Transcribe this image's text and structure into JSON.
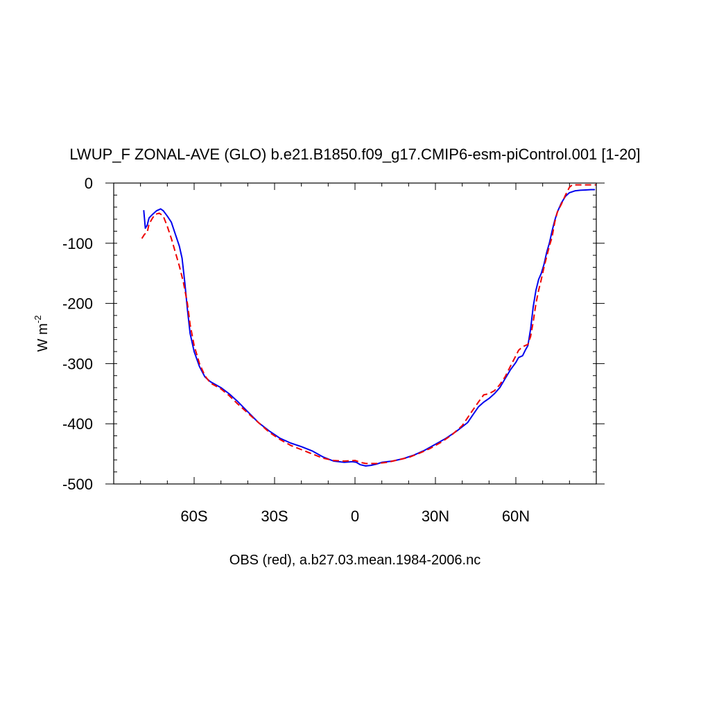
{
  "chart_data": {
    "type": "line",
    "title": "LWUP_F ZONAL-AVE (GLO) b.e21.B1850.f09_g17.CMIP6-esm-piControl.001 [1-20]",
    "ylabel": "W m",
    "ylabel_superscript": "-2",
    "footer": "OBS (red), a.b27.03.mean.1984-2006.nc",
    "xlim": [
      -90,
      90
    ],
    "ylim": [
      -500,
      0
    ],
    "xticks": [
      {
        "value": -60,
        "label": "60S"
      },
      {
        "value": -30,
        "label": "30S"
      },
      {
        "value": 0,
        "label": "0"
      },
      {
        "value": 30,
        "label": "30N"
      },
      {
        "value": 60,
        "label": "60N"
      }
    ],
    "yticks": [
      {
        "value": 0,
        "label": "0"
      },
      {
        "value": -100,
        "label": "-100"
      },
      {
        "value": -200,
        "label": "-200"
      },
      {
        "value": -300,
        "label": "-300"
      },
      {
        "value": -400,
        "label": "-400"
      },
      {
        "value": -500,
        "label": "-500"
      }
    ],
    "grid": false,
    "series": [
      {
        "color": "#0000ee",
        "dash": "solid",
        "points": [
          [
            -78.8,
            -45
          ],
          [
            -78.2,
            -75
          ],
          [
            -77.5,
            -70
          ],
          [
            -76.8,
            -58
          ],
          [
            -75.5,
            -52
          ],
          [
            -74.0,
            -46
          ],
          [
            -72.5,
            -43
          ],
          [
            -71.5,
            -46
          ],
          [
            -70.0,
            -55
          ],
          [
            -68.5,
            -65
          ],
          [
            -67.0,
            -85
          ],
          [
            -65.5,
            -105
          ],
          [
            -64.5,
            -125
          ],
          [
            -63.5,
            -165
          ],
          [
            -62.5,
            -210
          ],
          [
            -61.5,
            -250
          ],
          [
            -60.0,
            -280
          ],
          [
            -58.0,
            -305
          ],
          [
            -56.0,
            -322
          ],
          [
            -54.0,
            -330
          ],
          [
            -50.0,
            -340
          ],
          [
            -47.0,
            -350
          ],
          [
            -44.0,
            -362
          ],
          [
            -40.0,
            -380
          ],
          [
            -36.0,
            -398
          ],
          [
            -32.0,
            -412
          ],
          [
            -28.0,
            -424
          ],
          [
            -24.0,
            -432
          ],
          [
            -20.0,
            -438
          ],
          [
            -16.0,
            -445
          ],
          [
            -12.0,
            -455
          ],
          [
            -8.0,
            -462
          ],
          [
            -4.0,
            -464
          ],
          [
            -1.0,
            -463
          ],
          [
            0.5,
            -464
          ],
          [
            2.0,
            -468
          ],
          [
            4.0,
            -470
          ],
          [
            6.0,
            -469
          ],
          [
            8.0,
            -467
          ],
          [
            10.0,
            -464
          ],
          [
            14.0,
            -462
          ],
          [
            18.0,
            -458
          ],
          [
            22.0,
            -452
          ],
          [
            26.0,
            -444
          ],
          [
            30.0,
            -434
          ],
          [
            34.0,
            -424
          ],
          [
            38.0,
            -412
          ],
          [
            42.0,
            -398
          ],
          [
            44.0,
            -385
          ],
          [
            46.0,
            -372
          ],
          [
            48.0,
            -364
          ],
          [
            50.0,
            -358
          ],
          [
            52.0,
            -350
          ],
          [
            54.0,
            -340
          ],
          [
            56.0,
            -325
          ],
          [
            58.0,
            -310
          ],
          [
            60.0,
            -298
          ],
          [
            61.0,
            -290
          ],
          [
            62.5,
            -287
          ],
          [
            63.5,
            -278
          ],
          [
            64.5,
            -270
          ],
          [
            65.5,
            -242
          ],
          [
            66.5,
            -205
          ],
          [
            67.5,
            -178
          ],
          [
            68.5,
            -160
          ],
          [
            69.5,
            -150
          ],
          [
            70.5,
            -135
          ],
          [
            71.5,
            -115
          ],
          [
            72.5,
            -100
          ],
          [
            73.5,
            -80
          ],
          [
            74.5,
            -62
          ],
          [
            75.5,
            -48
          ],
          [
            77.0,
            -33
          ],
          [
            78.5,
            -22
          ],
          [
            80.0,
            -16
          ],
          [
            82.0,
            -13
          ],
          [
            84.0,
            -12
          ],
          [
            86.0,
            -11.5
          ],
          [
            88.0,
            -11
          ],
          [
            89.5,
            -11
          ]
        ]
      },
      {
        "color": "#ee0000",
        "dash": "dashed",
        "points": [
          [
            -79.5,
            -92
          ],
          [
            -78.5,
            -85
          ],
          [
            -77.5,
            -82
          ],
          [
            -76.8,
            -68
          ],
          [
            -75.5,
            -58
          ],
          [
            -74.5,
            -52
          ],
          [
            -73.0,
            -50
          ],
          [
            -71.5,
            -55
          ],
          [
            -70.0,
            -72
          ],
          [
            -68.5,
            -92
          ],
          [
            -67.0,
            -115
          ],
          [
            -65.5,
            -138
          ],
          [
            -64.0,
            -165
          ],
          [
            -62.5,
            -200
          ],
          [
            -61.5,
            -235
          ],
          [
            -60.0,
            -270
          ],
          [
            -58.0,
            -300
          ],
          [
            -56.0,
            -320
          ],
          [
            -54.0,
            -332
          ],
          [
            -50.0,
            -342
          ],
          [
            -47.0,
            -353
          ],
          [
            -44.0,
            -366
          ],
          [
            -40.0,
            -382
          ],
          [
            -36.0,
            -398
          ],
          [
            -32.0,
            -414
          ],
          [
            -28.0,
            -426
          ],
          [
            -24.0,
            -436
          ],
          [
            -20.0,
            -443
          ],
          [
            -16.0,
            -450
          ],
          [
            -12.0,
            -457
          ],
          [
            -8.0,
            -461
          ],
          [
            -4.0,
            -462
          ],
          [
            0.0,
            -461
          ],
          [
            2.0,
            -464
          ],
          [
            4.0,
            -466
          ],
          [
            8.0,
            -466
          ],
          [
            12.0,
            -464
          ],
          [
            16.0,
            -460
          ],
          [
            20.0,
            -456
          ],
          [
            24.0,
            -449
          ],
          [
            28.0,
            -441
          ],
          [
            32.0,
            -431
          ],
          [
            36.0,
            -419
          ],
          [
            40.0,
            -403
          ],
          [
            42.0,
            -390
          ],
          [
            44.0,
            -377
          ],
          [
            46.0,
            -364
          ],
          [
            48.0,
            -352
          ],
          [
            50.0,
            -350
          ],
          [
            52.0,
            -345
          ],
          [
            54.0,
            -335
          ],
          [
            56.0,
            -322
          ],
          [
            58.0,
            -304
          ],
          [
            60.0,
            -287
          ],
          [
            61.0,
            -278
          ],
          [
            62.5,
            -272
          ],
          [
            63.5,
            -270
          ],
          [
            64.5,
            -268
          ],
          [
            65.5,
            -255
          ],
          [
            66.5,
            -230
          ],
          [
            67.5,
            -200
          ],
          [
            68.5,
            -178
          ],
          [
            69.5,
            -160
          ],
          [
            70.5,
            -140
          ],
          [
            71.5,
            -122
          ],
          [
            72.5,
            -105
          ],
          [
            73.5,
            -90
          ],
          [
            74.5,
            -65
          ],
          [
            75.5,
            -48
          ],
          [
            77.0,
            -35
          ],
          [
            78.5,
            -20
          ],
          [
            80.0,
            -7
          ],
          [
            81.0,
            -3
          ],
          [
            83.0,
            -3
          ],
          [
            86.0,
            -3
          ],
          [
            88.5,
            -3
          ],
          [
            90.0,
            -3
          ]
        ]
      }
    ]
  }
}
